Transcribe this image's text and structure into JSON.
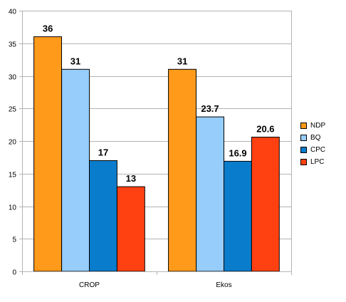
{
  "chart_data": {
    "type": "bar",
    "title": "",
    "xlabel": "",
    "ylabel": "",
    "categories": [
      "CROP",
      "Ekos"
    ],
    "series": [
      {
        "name": "NDP",
        "values": [
          36,
          31
        ],
        "labels": [
          "36",
          "31"
        ],
        "color": "#ff9a1a"
      },
      {
        "name": "BQ",
        "values": [
          31,
          23.7
        ],
        "labels": [
          "31",
          "23.7"
        ],
        "color": "#96cdfa"
      },
      {
        "name": "CPC",
        "values": [
          17,
          16.9
        ],
        "labels": [
          "17",
          "16.9"
        ],
        "color": "#0a7ccc"
      },
      {
        "name": "LPC",
        "values": [
          13,
          20.6
        ],
        "labels": [
          "13",
          "20.6"
        ],
        "color": "#ff4112"
      }
    ],
    "ylim": [
      0,
      40
    ],
    "yticks": [
      "0",
      "5",
      "10",
      "15",
      "20",
      "25",
      "30",
      "35",
      "40"
    ],
    "grid": true,
    "legend_position": "right"
  }
}
